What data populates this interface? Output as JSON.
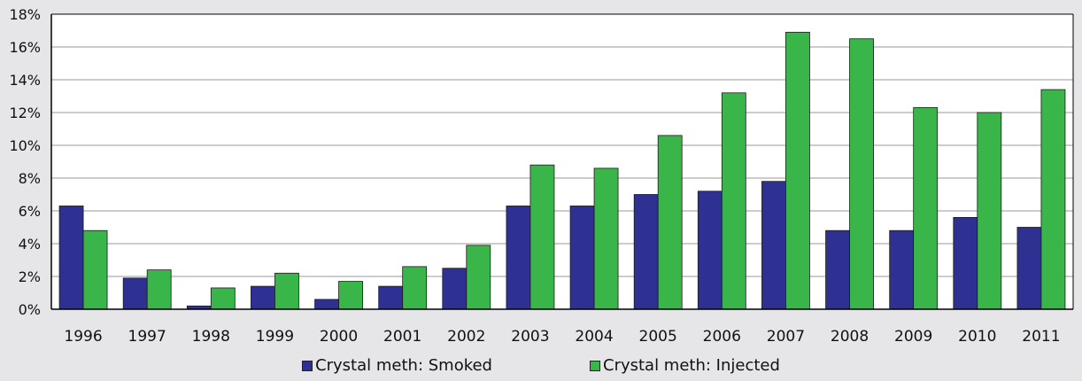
{
  "chart_data": {
    "type": "bar",
    "categories": [
      "1996",
      "1997",
      "1998",
      "1999",
      "2000",
      "2001",
      "2002",
      "2003",
      "2004",
      "2005",
      "2006",
      "2007",
      "2008",
      "2009",
      "2010",
      "2011"
    ],
    "series": [
      {
        "name": "Crystal meth:  Smoked",
        "color": "#2e3192",
        "values": [
          6.3,
          1.9,
          0.2,
          1.4,
          0.6,
          1.4,
          2.5,
          6.3,
          6.3,
          7.0,
          7.2,
          7.8,
          4.8,
          4.8,
          5.6,
          5.0
        ]
      },
      {
        "name": "Crystal meth:  Injected",
        "color": "#3ab54a",
        "values": [
          4.8,
          2.4,
          1.3,
          2.2,
          1.7,
          2.6,
          3.9,
          8.8,
          8.6,
          10.6,
          13.2,
          16.9,
          16.5,
          12.3,
          12.0,
          13.4
        ]
      }
    ],
    "yticks": [
      "0%",
      "2%",
      "4%",
      "6%",
      "8%",
      "10%",
      "12%",
      "14%",
      "16%",
      "18%"
    ],
    "ylim": [
      0,
      18
    ],
    "grid": true,
    "legend_position": "bottom-center"
  }
}
